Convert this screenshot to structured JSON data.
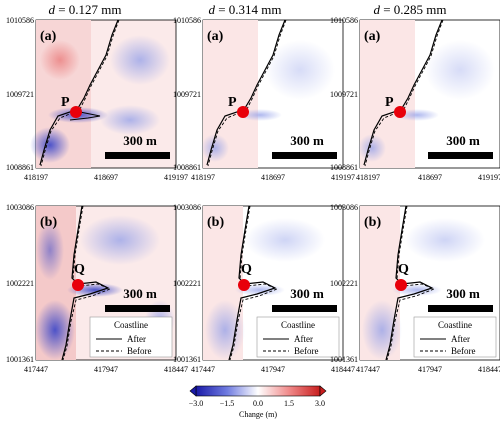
{
  "columns": [
    {
      "prefix": "d",
      "value": " = 0.127 mm"
    },
    {
      "prefix": "d",
      "value": " = 0.314 mm"
    },
    {
      "prefix": "d",
      "value": " = 0.285 mm"
    }
  ],
  "rows": [
    {
      "panel_label": "(a)",
      "point_label": "P",
      "y_ticks": [
        "1010586",
        "1009721",
        "1008861"
      ],
      "x_ticks": [
        "418197",
        "418697",
        "419197"
      ]
    },
    {
      "panel_label": "(b)",
      "point_label": "Q",
      "y_ticks": [
        "1003086",
        "1002221",
        "1001361"
      ],
      "x_ticks": [
        "417447",
        "417947",
        "418447"
      ]
    }
  ],
  "scale_bar": "300 m",
  "legend": {
    "title": "Coastline",
    "after": "After",
    "before": "Before"
  },
  "colorbar": {
    "ticks": [
      "−3.0",
      "−1.5",
      "0.0",
      "1.5",
      "3.0"
    ],
    "label": "Change (m)",
    "range": [
      -3.0,
      3.0
    ],
    "colormap": [
      "#1a1aa8",
      "#6f7be0",
      "#ffffff",
      "#f08a8a",
      "#c81e1e"
    ]
  },
  "point_color": "#e8000b"
}
